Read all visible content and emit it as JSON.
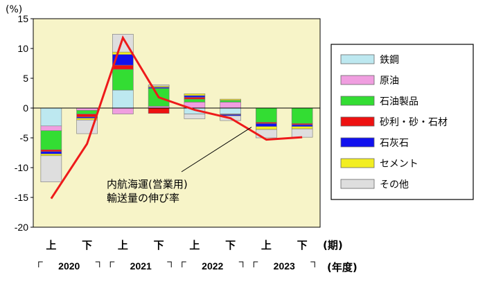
{
  "chart_data": {
    "type": "bar",
    "y_unit": "(%)",
    "ylim": [
      -20,
      15
    ],
    "yticks": [
      15,
      10,
      5,
      0,
      -5,
      -10,
      -15,
      -20
    ],
    "categories": [
      "上",
      "下",
      "上",
      "下",
      "上",
      "下",
      "上",
      "下"
    ],
    "period_suffix": "(期)",
    "fiscal_years": [
      "2020",
      "2021",
      "2022",
      "2023"
    ],
    "year_suffix": "(年度)",
    "series": [
      {
        "name": "鉄鋼",
        "color": "#bde8f0",
        "values": [
          -3.0,
          0,
          3.0,
          0,
          -1.0,
          -1.0,
          0,
          0
        ]
      },
      {
        "name": "原油",
        "color": "#f09ee0",
        "values": [
          -0.8,
          -0.4,
          -1.0,
          0.3,
          1.0,
          1.0,
          0,
          0
        ]
      },
      {
        "name": "石油製品",
        "color": "#33dd33",
        "values": [
          -3.2,
          -0.6,
          3.5,
          3.0,
          0.5,
          0.3,
          -2.4,
          -2.6
        ]
      },
      {
        "name": "砂利・砂・石材",
        "color": "#ee1111",
        "values": [
          -0.3,
          -0.5,
          0.7,
          -0.9,
          0.3,
          -0.1,
          -0.2,
          -0.2
        ]
      },
      {
        "name": "石灰石",
        "color": "#1111ee",
        "values": [
          -0.4,
          -0.2,
          1.8,
          0.2,
          0.3,
          -0.2,
          -0.5,
          -0.3
        ]
      },
      {
        "name": "セメント",
        "color": "#f2ee22",
        "values": [
          -0.3,
          -0.3,
          0.4,
          0.2,
          0.3,
          0.2,
          -0.5,
          -0.4
        ]
      },
      {
        "name": "その他",
        "color": "#dedede",
        "values": [
          -4.4,
          -2.3,
          3.0,
          0.2,
          -0.8,
          -0.8,
          -1.4,
          -1.4
        ]
      }
    ],
    "total_line": {
      "name": "内航海運(営業用)\n輸送量の伸び率",
      "label_lines": [
        "内航海運(営業用)",
        "輸送量の伸び率"
      ],
      "color": "#ee1a1a",
      "values": [
        -15.2,
        -6.0,
        11.8,
        1.8,
        -0.3,
        -1.7,
        -5.3,
        -4.9
      ]
    },
    "legend_position": "right",
    "plot_background": "#f7f4c8",
    "grid": false
  }
}
